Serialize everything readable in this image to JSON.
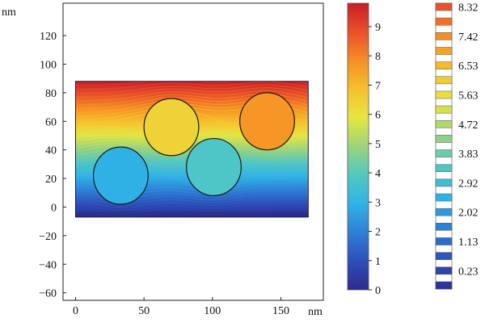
{
  "chart_data": {
    "type": "heatmap",
    "xlabel": "",
    "ylabel": "",
    "x_unit": "nm",
    "y_unit": "nm",
    "xlim": [
      -10,
      170
    ],
    "ylim": [
      -65,
      145
    ],
    "x_ticks": [
      0,
      50,
      100,
      150
    ],
    "x_tick_labels": [
      "0",
      "50",
      "100",
      "150"
    ],
    "y_ticks": [
      -60,
      -40,
      -20,
      0,
      20,
      40,
      60,
      80,
      100,
      120
    ],
    "y_tick_labels": [
      "−60",
      "−40",
      "−20",
      "0",
      "20",
      "40",
      "60",
      "80",
      "100",
      "120"
    ],
    "domain": {
      "x": [
        0,
        170
      ],
      "y": [
        -7,
        88
      ]
    },
    "field": {
      "value_bottom": 0,
      "value_top": 9.8,
      "description_values": [
        [
          0,
          -7
        ],
        [
          9.8,
          88
        ]
      ]
    },
    "circles": [
      {
        "cx": 33,
        "cy": 22,
        "r": 20,
        "value": 2.9
      },
      {
        "cx": 70,
        "cy": 56,
        "r": 20,
        "value": 6.4
      },
      {
        "cx": 101,
        "cy": 28,
        "r": 20,
        "value": 3.8
      },
      {
        "cx": 140,
        "cy": 60,
        "r": 20,
        "value": 7.7
      }
    ],
    "colorbar": {
      "min": 0,
      "max": 9.8,
      "ticks": [
        0,
        1,
        2,
        3,
        4,
        5,
        6,
        7,
        8,
        9
      ],
      "tick_labels": [
        "0",
        "1",
        "2",
        "3",
        "4",
        "5",
        "6",
        "7",
        "8",
        "9"
      ]
    },
    "contour_legend": {
      "labels": [
        "8.32",
        "7.42",
        "6.53",
        "5.63",
        "4.72",
        "3.83",
        "2.92",
        "2.02",
        "1.13",
        "0.23"
      ],
      "levels": [
        0.23,
        0.68,
        1.13,
        1.58,
        2.02,
        2.47,
        2.92,
        3.38,
        3.83,
        4.28,
        4.72,
        5.18,
        5.63,
        6.08,
        6.53,
        6.98,
        7.42,
        7.87,
        8.32,
        8.77
      ]
    },
    "grid": false
  },
  "colors": {
    "scale": [
      "#2e2a8f",
      "#2d4fb8",
      "#2f7fd6",
      "#30b3e6",
      "#52c7c2",
      "#9bd47d",
      "#e6e642",
      "#f6c12d",
      "#f58f25",
      "#e9502a",
      "#c81e26"
    ]
  }
}
